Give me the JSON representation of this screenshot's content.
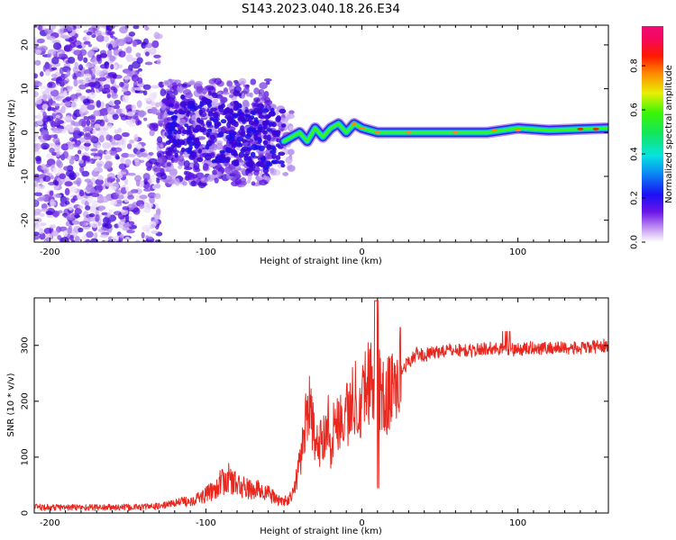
{
  "title": "S143.2023.040.18.26.E34",
  "chart_data": [
    {
      "type": "heatmap",
      "xlabel": "Height of straight line (km)",
      "ylabel": "Frequency (Hz)",
      "xlim": [
        -210,
        158
      ],
      "ylim": [
        -25,
        24.5
      ],
      "xticks": [
        -200,
        -100,
        0,
        100
      ],
      "yticks": [
        -20,
        -10,
        0,
        10,
        20
      ],
      "colorbar": {
        "label": "Normalized spectral amplitude",
        "range": [
          0,
          0.98
        ],
        "ticks": [
          "0.0",
          "0.2",
          "0.4",
          "0.6",
          "0.8"
        ],
        "tick_values": [
          0,
          0.2,
          0.4,
          0.6,
          0.8
        ],
        "colormap": "rainbow (white-purple-blue-cyan-green-yellow-red-magenta)"
      },
      "ridge": {
        "description": "bright narrow band near 0 Hz from about -50 km to the right edge",
        "x": [
          -50,
          -45,
          -40,
          -35,
          -30,
          -25,
          -20,
          -15,
          -10,
          -5,
          0,
          10,
          20,
          40,
          60,
          80,
          100,
          120,
          140,
          158
        ],
        "freq": [
          -2,
          -1,
          0,
          -2,
          1,
          -1,
          1,
          2,
          0,
          2,
          1,
          0,
          0,
          0,
          0,
          0,
          1,
          0.5,
          0.8,
          1
        ]
      }
    },
    {
      "type": "line",
      "xlabel": "Height of straight line (km)",
      "ylabel": "SNR (10 * v/v)",
      "xlim": [
        -210,
        158
      ],
      "ylim": [
        0,
        385
      ],
      "xticks": [
        -200,
        -100,
        0,
        100
      ],
      "yticks": [
        0,
        100,
        200,
        300
      ],
      "color": "#e8271f",
      "series": [
        {
          "x": [
            -210,
            -190,
            -170,
            -150,
            -130,
            -120,
            -110,
            -100,
            -95,
            -90,
            -85,
            -80,
            -75,
            -70,
            -65,
            -60,
            -55,
            -50,
            -45,
            -42,
            -38,
            -35,
            -32,
            -28,
            -25,
            -22,
            -20,
            -18,
            -15,
            -12,
            -10,
            -8,
            -6,
            -4,
            -2,
            0,
            3,
            6,
            9,
            10,
            12,
            15,
            20,
            25,
            30,
            35,
            40,
            50,
            60,
            70,
            80,
            90,
            100,
            110,
            120,
            130,
            140,
            150,
            158
          ],
          "y": [
            10,
            10,
            10,
            10,
            12,
            18,
            22,
            32,
            42,
            55,
            62,
            50,
            45,
            40,
            42,
            35,
            25,
            20,
            28,
            60,
            120,
            200,
            160,
            110,
            140,
            175,
            120,
            150,
            175,
            160,
            190,
            170,
            200,
            210,
            195,
            215,
            230,
            250,
            160,
            270,
            210,
            200,
            225,
            255,
            270,
            285,
            282,
            290,
            292,
            290,
            295,
            294,
            292,
            296,
            295,
            296,
            294,
            298,
            300
          ]
        }
      ]
    }
  ]
}
